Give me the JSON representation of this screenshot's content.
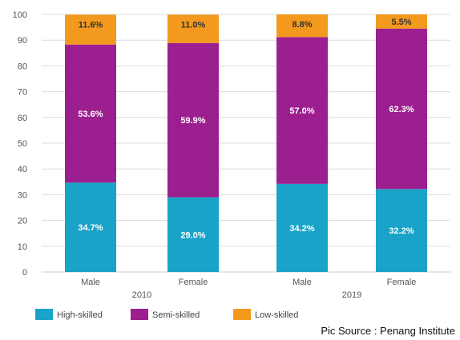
{
  "chart_data": {
    "type": "bar",
    "stacked": true,
    "categories": [
      "Male",
      "Female",
      "Male",
      "Female"
    ],
    "groups": [
      {
        "label": "2010",
        "categories": [
          0,
          1
        ]
      },
      {
        "label": "2019",
        "categories": [
          2,
          3
        ]
      }
    ],
    "series": [
      {
        "name": "High-skilled",
        "color": "#1aa3c8",
        "values": [
          34.7,
          29.0,
          34.2,
          32.2
        ],
        "labels": [
          "34.7%",
          "29.0%",
          "34.2%",
          "32.2%"
        ]
      },
      {
        "name": "Semi-skilled",
        "color": "#9b1f8f",
        "values": [
          53.6,
          59.9,
          57.0,
          62.3
        ],
        "labels": [
          "53.6%",
          "59.9%",
          "57.0%",
          "62.3%"
        ]
      },
      {
        "name": "Low-skilled",
        "color": "#f39a1e",
        "values": [
          11.6,
          11.0,
          8.8,
          5.5
        ],
        "labels": [
          "11.6%",
          "11.0%",
          "8.8%",
          "5.5%"
        ]
      }
    ],
    "ylim": [
      0,
      100
    ],
    "yticks": [
      0,
      10,
      20,
      30,
      40,
      50,
      60,
      70,
      80,
      90,
      100
    ],
    "grid": true,
    "legend_position": "bottom-left",
    "title": "",
    "xlabel": "",
    "ylabel": ""
  },
  "source": "Pic Source : Penang Institute"
}
